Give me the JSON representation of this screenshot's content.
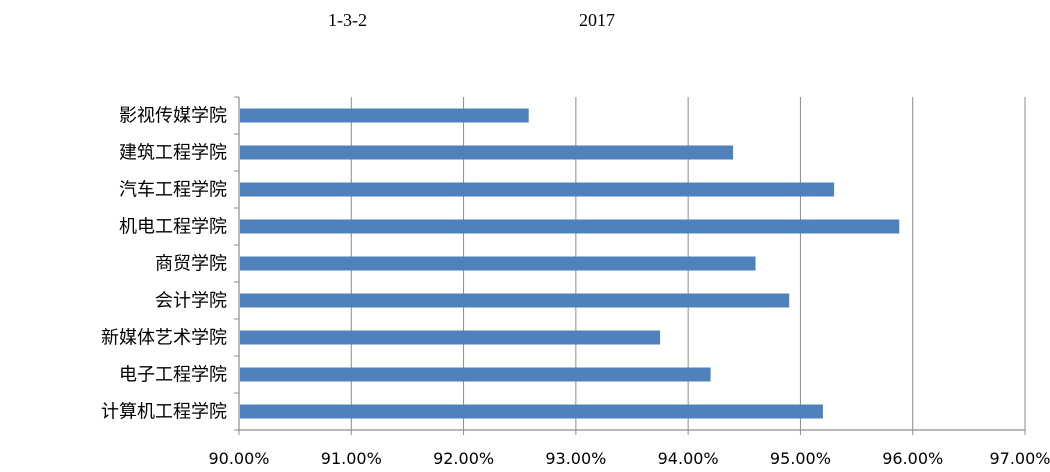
{
  "caption": {
    "figure_number": "1-3-2",
    "year": "2017"
  },
  "chart_data": {
    "type": "bar",
    "orientation": "horizontal",
    "categories": [
      "影视传媒学院",
      "建筑工程学院",
      "汽车工程学院",
      "机电工程学院",
      "商贸学院",
      "会计学院",
      "新媒体艺术学院",
      "电子工程学院",
      "计算机工程学院"
    ],
    "values": [
      92.58,
      94.4,
      95.3,
      95.88,
      94.6,
      94.9,
      93.75,
      94.2,
      95.2
    ],
    "xlim": [
      90,
      97
    ],
    "xticks": [
      "90.00%",
      "91.00%",
      "92.00%",
      "93.00%",
      "94.00%",
      "95.00%",
      "96.00%",
      "97.00%"
    ],
    "grid": true,
    "bar_color": "#4F81BD",
    "grid_color": "#8C8C8C"
  }
}
